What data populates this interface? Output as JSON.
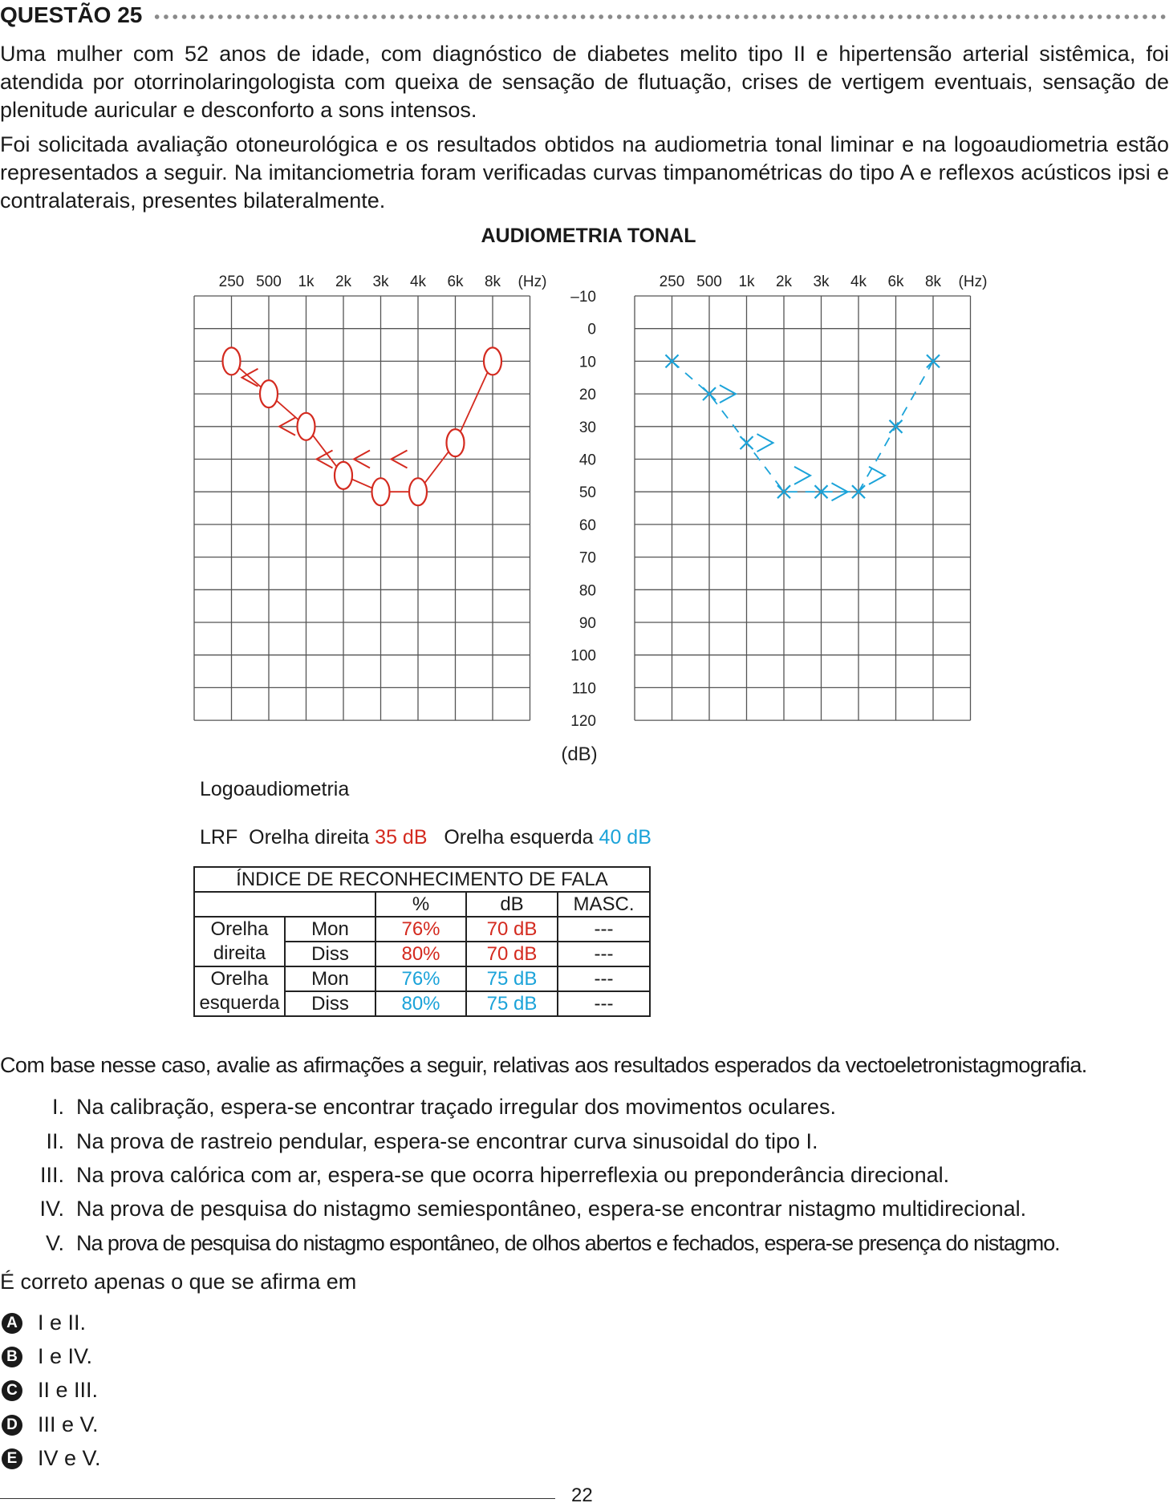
{
  "question": {
    "title": "QUESTÃO 25",
    "paragraphs": [
      "Uma mulher com 52 anos de idade, com diagnóstico de diabetes melito tipo II e hipertensão arterial sistêmica, foi atendida por otorrinolaringologista com queixa de sensação de flutuação, crises de vertigem eventuais, sensação de plenitude auricular e desconforto a sons intensos.",
      "Foi solicitada avaliação otoneurológica e os resultados obtidos na audiometria tonal liminar e na logoaudiometria estão representados a seguir. Na imitanciometria foram verificadas curvas timpanométricas do tipo A e reflexos acústicos ipsi e contralaterais, presentes bilateralmente."
    ]
  },
  "audiometry": {
    "title": "AUDIOMETRIA TONAL",
    "freq_labels": [
      "250",
      "500",
      "1k",
      "2k",
      "3k",
      "4k",
      "6k",
      "8k",
      "(Hz)"
    ],
    "db_labels": [
      "–10",
      "0",
      "10",
      "20",
      "30",
      "40",
      "50",
      "60",
      "70",
      "80",
      "90",
      "100",
      "110",
      "120"
    ],
    "db_unit": "(dB)",
    "right_color": "#d42a1f",
    "left_color": "#1ba3d9"
  },
  "chart_data": [
    {
      "type": "line",
      "title": "AUDIOMETRIA TONAL",
      "xlabel": "(Hz)",
      "ylabel": "(dB)",
      "x": [
        "250",
        "500",
        "1k",
        "2k",
        "3k",
        "4k",
        "6k",
        "8k"
      ],
      "ylim": [
        120,
        -10
      ],
      "grid": true,
      "series": [
        {
          "marker": "O",
          "style": "solid",
          "color": "#d42a1f",
          "values": [
            10,
            20,
            30,
            45,
            50,
            50,
            35,
            10
          ]
        },
        {
          "marker": "<",
          "style": "none",
          "color": "#d42a1f",
          "x": [
            "250",
            "500",
            "1k",
            "2k",
            "3k"
          ],
          "values": [
            15,
            30,
            40,
            40,
            40
          ]
        }
      ]
    },
    {
      "type": "line",
      "xlabel": "(Hz)",
      "ylabel": "(dB)",
      "x": [
        "250",
        "500",
        "1k",
        "2k",
        "3k",
        "4k",
        "6k",
        "8k"
      ],
      "ylim": [
        120,
        -10
      ],
      "grid": true,
      "series": [
        {
          "marker": "X",
          "style": "dashed",
          "color": "#1ba3d9",
          "values": [
            10,
            20,
            35,
            50,
            50,
            50,
            30,
            10
          ]
        },
        {
          "marker": ">",
          "style": "none",
          "color": "#1ba3d9",
          "x": [
            "500",
            "1k",
            "2k",
            "3k",
            "4k"
          ],
          "values": [
            20,
            35,
            45,
            50,
            45
          ]
        }
      ]
    }
  ],
  "logoaudiometry": {
    "title": "Logoaudiometria",
    "lrf_label": "LRF",
    "right_ear_label": "Orelha direita",
    "right_ear_value": "35 dB",
    "left_ear_label": "Orelha esquerda",
    "left_ear_value": "40 dB"
  },
  "irf_table": {
    "title": "ÍNDICE DE RECONHECIMENTO DE FALA",
    "headers": [
      "%",
      "dB",
      "MASC."
    ],
    "right_ear_lines": [
      "Orelha",
      "direita"
    ],
    "left_ear_lines": [
      "Orelha",
      "esquerda"
    ],
    "rows": [
      {
        "test": "Mon",
        "percent": "76%",
        "db": "70 dB",
        "masc": "---"
      },
      {
        "test": "Diss",
        "percent": "80%",
        "db": "70 dB",
        "masc": "---"
      },
      {
        "test": "Mon",
        "percent": "76%",
        "db": "75 dB",
        "masc": "---"
      },
      {
        "test": "Diss",
        "percent": "80%",
        "db": "75 dB",
        "masc": "---"
      }
    ]
  },
  "prompt_intro": "Com base nesse caso, avalie as afirmações a seguir, relativas aos resultados esperados da vectoeletronistagmografia.",
  "statements": [
    {
      "num": "I.",
      "text": "Na calibração, espera-se encontrar traçado irregular dos movimentos oculares."
    },
    {
      "num": "II.",
      "text": "Na prova de rastreio pendular, espera-se encontrar curva sinusoidal do tipo I."
    },
    {
      "num": "III.",
      "text": "Na prova calórica com ar, espera-se que ocorra hiperreflexia ou preponderância direcional."
    },
    {
      "num": "IV.",
      "text": "Na prova de pesquisa do nistagmo semiespontâneo, espera-se encontrar nistagmo multidirecional."
    },
    {
      "num": "V.",
      "text": "Na prova de pesquisa do nistagmo espontâneo, de olhos abertos e fechados, espera-se presença do nistagmo."
    }
  ],
  "prompt": "É correto apenas o que se afirma em",
  "options": [
    {
      "letter": "A",
      "text": "I e II."
    },
    {
      "letter": "B",
      "text": "I e IV."
    },
    {
      "letter": "C",
      "text": "II e III."
    },
    {
      "letter": "D",
      "text": "III e V."
    },
    {
      "letter": "E",
      "text": "IV e V."
    }
  ],
  "page_number": "22"
}
